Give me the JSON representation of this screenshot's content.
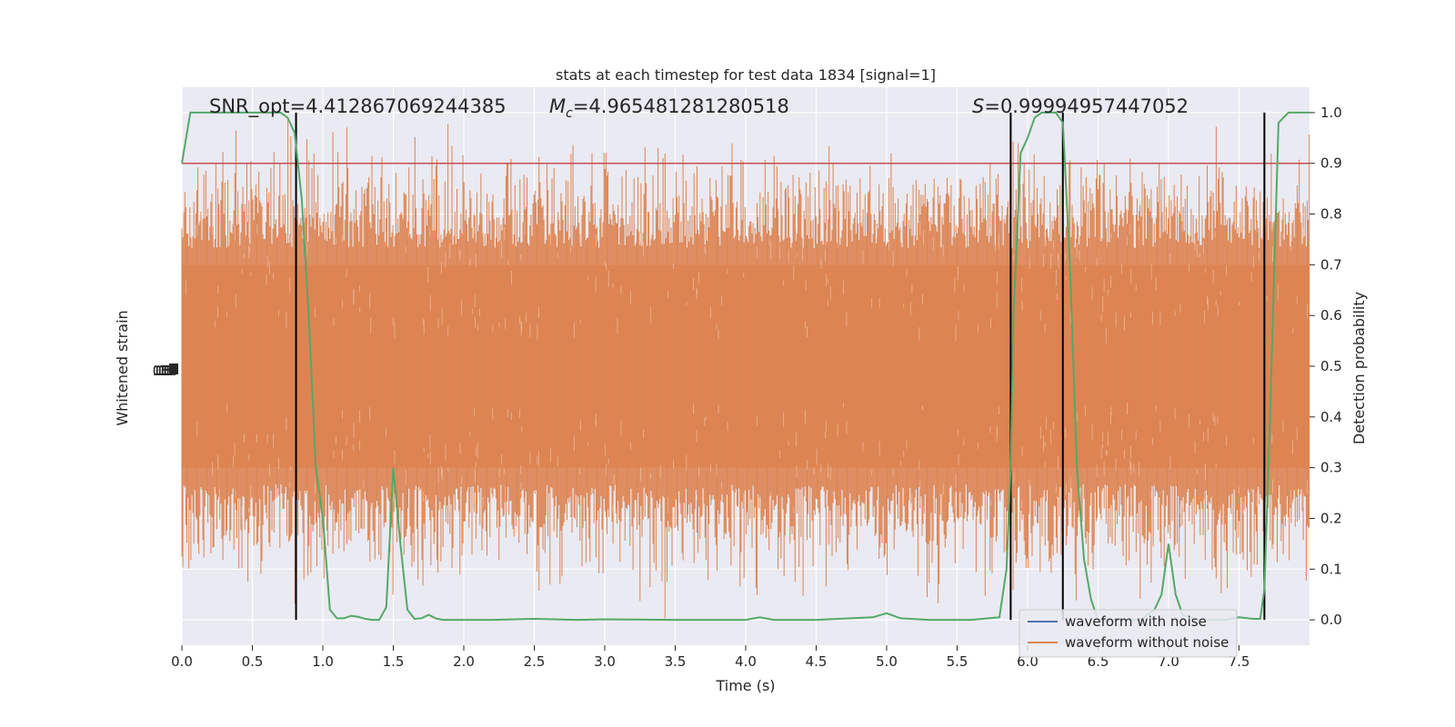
{
  "chart_data": {
    "type": "line",
    "title": "stats at each timestep for test data 1834 [signal=1]",
    "xlabel": "Time (s)",
    "ylabel_left": "Whitened strain",
    "ylabel_right": "Detection probability",
    "xlim": [
      0.0,
      8.0
    ],
    "xticks": [
      "0.0",
      "0.5",
      "1.0",
      "1.5",
      "2.0",
      "2.5",
      "3.0",
      "3.5",
      "4.0",
      "4.5",
      "5.0",
      "5.5",
      "6.0",
      "6.5",
      "7.0",
      "7.5"
    ],
    "ylim_right": [
      -0.05,
      1.05
    ],
    "yticks_right": [
      "0.0",
      "0.1",
      "0.2",
      "0.3",
      "0.4",
      "0.5",
      "0.6",
      "0.7",
      "0.8",
      "0.9",
      "1.0"
    ],
    "grid": true,
    "annotations": {
      "snr_label": "SNR_opt=4.412867069244385",
      "mc_symbol": "M",
      "mc_subscript": "c",
      "mc_value": "=4.965481281280518",
      "s_symbol": "S",
      "s_value": "=0.99994957447052"
    },
    "threshold": 0.9,
    "vertical_lines": [
      0.81,
      5.88,
      6.25,
      7.68
    ],
    "legend": {
      "placement": "lower right",
      "entries": [
        "waveform with noise",
        "waveform without noise"
      ]
    },
    "series": [
      {
        "name": "waveform with noise",
        "color": "#4c72b0",
        "values": []
      },
      {
        "name": "waveform without noise",
        "color": "#dd8452",
        "envelope_note": "dense noise band"
      },
      {
        "color": "#55a868",
        "x": [
          0.0,
          0.06,
          0.12,
          0.2,
          0.3,
          0.4,
          0.5,
          0.6,
          0.7,
          0.75,
          0.8,
          0.85,
          0.9,
          0.95,
          1.0,
          1.05,
          1.1,
          1.15,
          1.2,
          1.25,
          1.3,
          1.35,
          1.4,
          1.45,
          1.5,
          1.55,
          1.6,
          1.65,
          1.7,
          1.75,
          1.8,
          1.85,
          1.9,
          2.0,
          2.2,
          2.5,
          2.8,
          3.0,
          3.5,
          4.0,
          4.1,
          4.2,
          4.5,
          4.9,
          5.0,
          5.1,
          5.3,
          5.6,
          5.8,
          5.85,
          5.88,
          5.9,
          5.95,
          6.0,
          6.05,
          6.1,
          6.15,
          6.2,
          6.25,
          6.3,
          6.35,
          6.4,
          6.45,
          6.5,
          6.6,
          6.7,
          6.8,
          6.9,
          6.95,
          7.0,
          7.05,
          7.1,
          7.2,
          7.3,
          7.4,
          7.5,
          7.6,
          7.65,
          7.68,
          7.72,
          7.78,
          7.85,
          7.92,
          8.0
        ],
        "values": [
          0.9,
          1.0,
          1.0,
          1.0,
          1.0,
          1.0,
          1.0,
          1.0,
          1.0,
          0.99,
          0.96,
          0.83,
          0.6,
          0.3,
          0.2,
          0.02,
          0.003,
          0.003,
          0.008,
          0.006,
          0.002,
          0.0,
          0.0,
          0.025,
          0.3,
          0.15,
          0.02,
          0.002,
          0.003,
          0.01,
          0.003,
          0.0,
          0.0,
          0.0,
          0.0,
          0.002,
          0.0,
          0.001,
          0.0,
          0.0,
          0.005,
          0.0,
          0.0,
          0.005,
          0.013,
          0.003,
          0.0,
          0.0,
          0.005,
          0.1,
          0.3,
          0.6,
          0.92,
          0.95,
          0.99,
          1.0,
          1.0,
          1.0,
          0.98,
          0.7,
          0.3,
          0.12,
          0.04,
          0.0,
          0.0,
          0.0,
          0.0,
          0.02,
          0.05,
          0.15,
          0.05,
          0.01,
          0.0,
          0.0,
          0.0,
          0.005,
          0.002,
          0.002,
          0.06,
          0.4,
          0.98,
          1.0,
          1.0,
          1.0
        ]
      }
    ],
    "left_axis_ticks": [
      "ː0.5",
      "ː0.5",
      "ː0.5",
      "ː0.5",
      "0.5"
    ]
  }
}
